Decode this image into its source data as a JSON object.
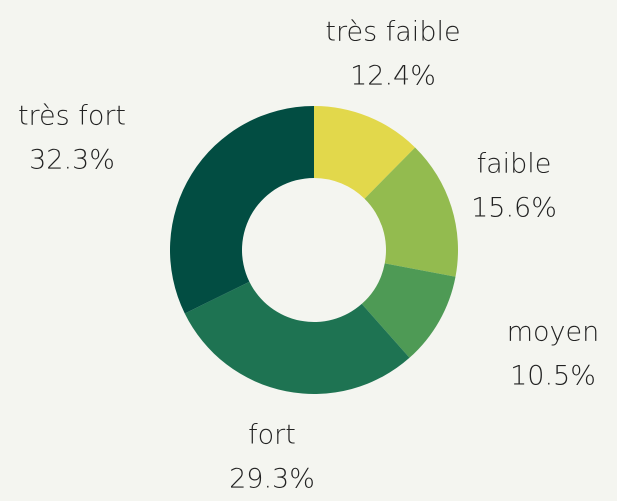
{
  "chart_data": {
    "type": "donut",
    "categories": [
      "très faible",
      "faible",
      "moyen",
      "fort",
      "très fort"
    ],
    "values": [
      12.4,
      15.6,
      10.5,
      29.3,
      32.3
    ],
    "value_labels": [
      "12.4%",
      "15.6%",
      "10.5%",
      "29.3%",
      "32.3%"
    ],
    "colors": [
      "#e2d84b",
      "#93bb4f",
      "#4e9a55",
      "#1e7352",
      "#024d42"
    ]
  }
}
